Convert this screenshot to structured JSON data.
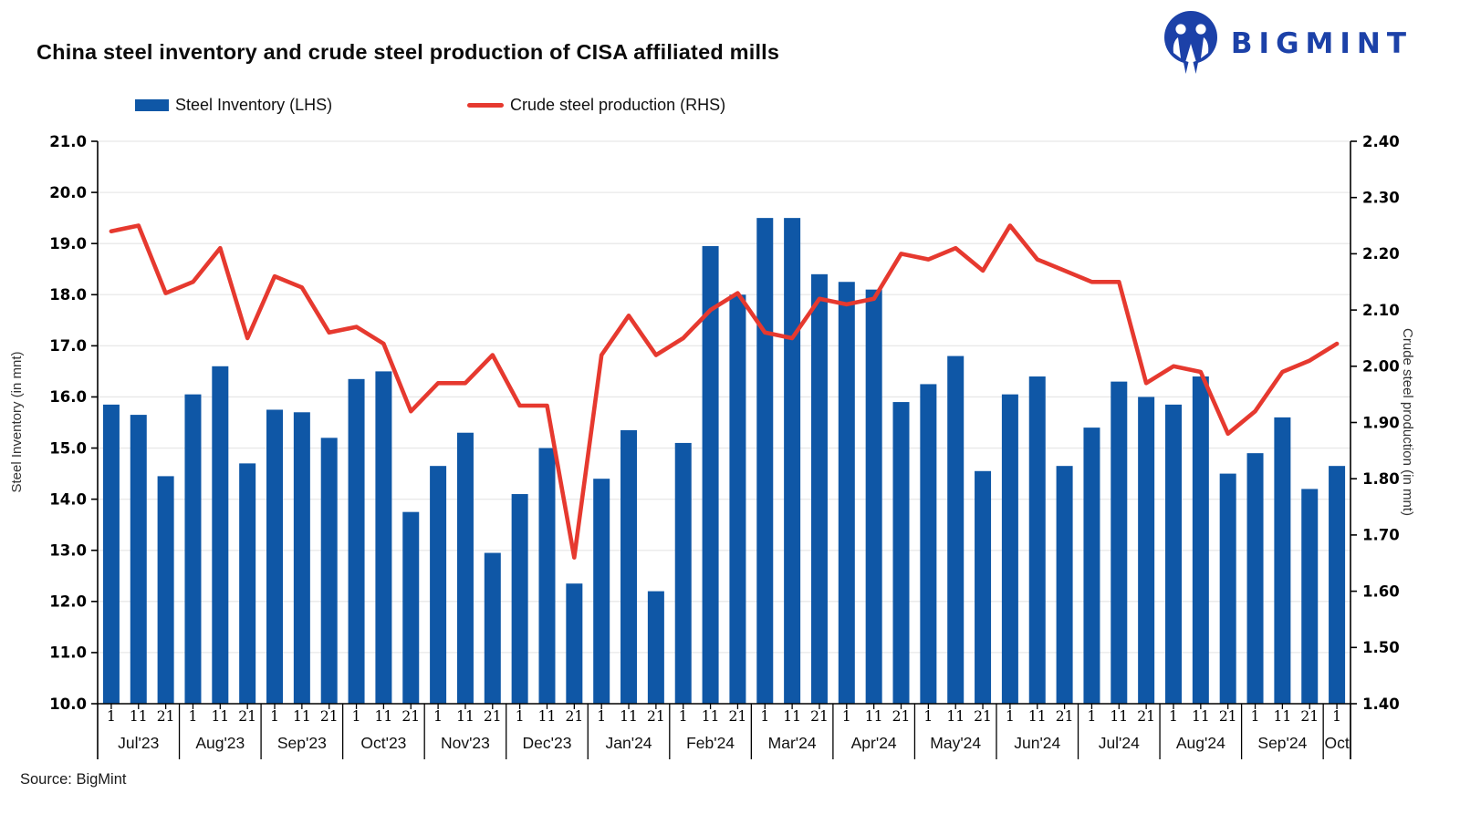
{
  "title": "China steel inventory and crude steel production of CISA affiliated mills",
  "logo": {
    "text": "BIGMINT",
    "color": "#1c41a8"
  },
  "legend": {
    "items": [
      {
        "label": "Steel Inventory (LHS)",
        "swatch": "bar",
        "color": "#0f57a6"
      },
      {
        "label": "Crude steel production (RHS)",
        "swatch": "line",
        "color": "#e6392f"
      }
    ]
  },
  "source": "Source: BigMint",
  "chart_data": {
    "type": "bar+line",
    "title": "China steel inventory and crude steel production of CISA affiliated mills",
    "ylabel_left": "Steel Inventory (in mnt)",
    "ylabel_right": "Crude steel production (in mnt)",
    "grid": "horizontal",
    "legend_position": "top",
    "yaxis_left": {
      "min": 10.0,
      "max": 21.0,
      "tick_step": 1.0,
      "tick_labels": [
        "21.0",
        "20.0",
        "19.0",
        "18.0",
        "17.0",
        "16.0",
        "15.0",
        "14.0",
        "13.0",
        "12.0",
        "11.0",
        "10.0"
      ]
    },
    "yaxis_right": {
      "min": 1.4,
      "max": 2.4,
      "tick_step": 0.1,
      "tick_labels": [
        "2.40",
        "2.30",
        "2.20",
        "2.10",
        "2.00",
        "1.90",
        "1.80",
        "1.70",
        "1.60",
        "1.50",
        "1.40"
      ]
    },
    "months": [
      {
        "label": "Jul'23",
        "days": [
          "1",
          "11",
          "21"
        ]
      },
      {
        "label": "Aug'23",
        "days": [
          "1",
          "11",
          "21"
        ]
      },
      {
        "label": "Sep'23",
        "days": [
          "1",
          "11",
          "21"
        ]
      },
      {
        "label": "Oct'23",
        "days": [
          "1",
          "11",
          "21"
        ]
      },
      {
        "label": "Nov'23",
        "days": [
          "1",
          "11",
          "21"
        ]
      },
      {
        "label": "Dec'23",
        "days": [
          "1",
          "11",
          "21"
        ]
      },
      {
        "label": "Jan'24",
        "days": [
          "1",
          "11",
          "21"
        ]
      },
      {
        "label": "Feb'24",
        "days": [
          "1",
          "11",
          "21"
        ]
      },
      {
        "label": "Mar'24",
        "days": [
          "1",
          "11",
          "21"
        ]
      },
      {
        "label": "Apr'24",
        "days": [
          "1",
          "11",
          "21"
        ]
      },
      {
        "label": "May'24",
        "days": [
          "1",
          "11",
          "21"
        ]
      },
      {
        "label": "Jun'24",
        "days": [
          "1",
          "11",
          "21"
        ]
      },
      {
        "label": "Jul'24",
        "days": [
          "1",
          "11",
          "21"
        ]
      },
      {
        "label": "Aug'24",
        "days": [
          "1",
          "11",
          "21"
        ]
      },
      {
        "label": "Sep'24",
        "days": [
          "1",
          "11",
          "21"
        ]
      },
      {
        "label": "Oct",
        "days": [
          "1"
        ]
      }
    ],
    "series": [
      {
        "name": "Steel Inventory (LHS)",
        "type": "bar",
        "axis": "left",
        "color": "#0f57a6",
        "values": [
          15.85,
          15.65,
          14.45,
          16.05,
          16.6,
          14.7,
          15.75,
          15.7,
          15.2,
          16.35,
          16.5,
          13.75,
          14.65,
          15.3,
          12.95,
          14.1,
          15.0,
          12.35,
          14.4,
          15.35,
          12.2,
          15.1,
          18.95,
          18.0,
          19.5,
          19.5,
          18.4,
          18.25,
          18.1,
          15.9,
          16.25,
          16.8,
          14.55,
          16.05,
          16.4,
          14.65,
          15.4,
          16.3,
          16.0,
          15.85,
          16.4,
          14.5,
          14.9,
          15.6,
          14.2,
          14.65
        ]
      },
      {
        "name": "Crude steel production (RHS)",
        "type": "line",
        "axis": "right",
        "color": "#e6392f",
        "values": [
          2.24,
          2.25,
          2.13,
          2.15,
          2.21,
          2.05,
          2.16,
          2.14,
          2.06,
          2.07,
          2.04,
          1.92,
          1.97,
          1.97,
          2.02,
          1.93,
          1.93,
          1.66,
          2.02,
          2.09,
          2.02,
          2.05,
          2.1,
          2.13,
          2.06,
          2.05,
          2.12,
          2.11,
          2.12,
          2.2,
          2.19,
          2.21,
          2.17,
          2.25,
          2.19,
          2.17,
          2.15,
          2.15,
          1.97,
          2.0,
          1.99,
          1.88,
          1.92,
          1.99,
          2.01,
          2.04
        ]
      }
    ],
    "colors": {
      "grid": "#e8e8e8",
      "axis": "#000000",
      "tick_text": "#000000",
      "month_text": "#111111"
    }
  }
}
